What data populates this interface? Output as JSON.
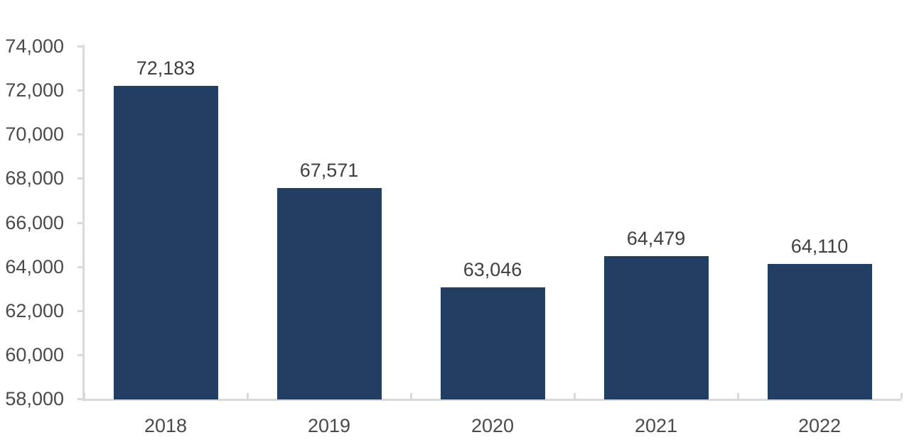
{
  "chart_data": {
    "type": "bar",
    "categories": [
      "2018",
      "2019",
      "2020",
      "2021",
      "2022"
    ],
    "values": [
      72183,
      67571,
      63046,
      64479,
      64110
    ],
    "value_labels": [
      "72,183",
      "67,571",
      "63,046",
      "64,479",
      "64,110"
    ],
    "title": "",
    "xlabel": "",
    "ylabel": "",
    "ylim": [
      58000,
      74000
    ],
    "ytick_step": 2000,
    "ytick_labels_top_to_bottom": [
      "74,000",
      "72,000",
      "70,000",
      "68,000",
      "66,000",
      "64,000",
      "62,000",
      "60,000",
      "58,000"
    ],
    "grid": false,
    "legend": "none",
    "colors": {
      "bar": "#223E63",
      "axis_line": "#D9D9D9",
      "axis_label": "#4A4A4A",
      "data_label": "#3F3F3F"
    }
  }
}
